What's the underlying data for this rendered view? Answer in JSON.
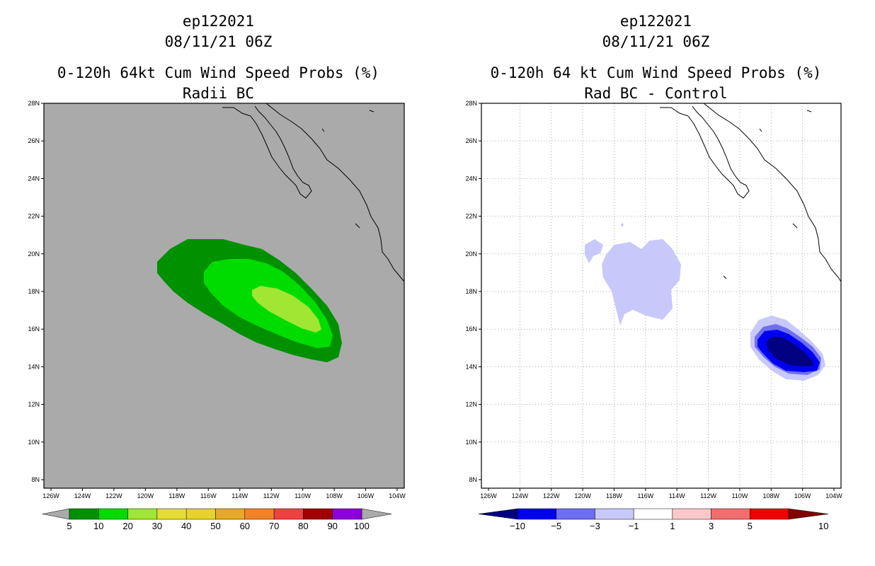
{
  "left_panel": {
    "storm_id": "ep122021",
    "datetime": "08/11/21 06Z",
    "title": "0-120h 64kt Cum Wind Speed Probs (%)",
    "subtitle": "Radii BC",
    "background_color": "#aaaaaa",
    "lat_labels": [
      "28N",
      "26N",
      "24N",
      "22N",
      "20N",
      "18N",
      "16N",
      "14N",
      "12N",
      "10N",
      "8N"
    ],
    "lon_labels": [
      "126W",
      "124W",
      "122W",
      "120W",
      "118W",
      "116W",
      "114W",
      "112W",
      "110W",
      "108W",
      "106W",
      "104W"
    ],
    "colorbar": {
      "labels": [
        "5",
        "10",
        "20",
        "30",
        "40",
        "50",
        "60",
        "70",
        "80",
        "90",
        "100"
      ],
      "colors": [
        "#009000",
        "#00dc00",
        "#a0e632",
        "#e6dc32",
        "#e6d228",
        "#e6aa28",
        "#f08228",
        "#f04040",
        "#a00000",
        "#8c00dc"
      ]
    }
  },
  "right_panel": {
    "storm_id": "ep122021",
    "datetime": "08/11/21 06Z",
    "title": "0-120h 64 kt Cum Wind Speed Probs (%)",
    "subtitle": "Rad BC - Control",
    "background_color": "#ffffff",
    "lat_labels": [
      "28N",
      "26N",
      "24N",
      "22N",
      "20N",
      "18N",
      "16N",
      "14N",
      "12N",
      "10N",
      "8N"
    ],
    "lon_labels": [
      "126W",
      "124W",
      "122W",
      "120W",
      "118W",
      "116W",
      "114W",
      "112W",
      "110W",
      "108W",
      "106W",
      "104W"
    ],
    "colorbar": {
      "labels": [
        "-10",
        "-5",
        "-3",
        "-1",
        "1",
        "3",
        "5",
        "10"
      ],
      "colors": [
        "#000080",
        "#0000f0",
        "#6e6ef0",
        "#c8c8fa",
        "#ffffff",
        "#fac8c8",
        "#f06e6e",
        "#f00000",
        "#800000"
      ]
    }
  }
}
